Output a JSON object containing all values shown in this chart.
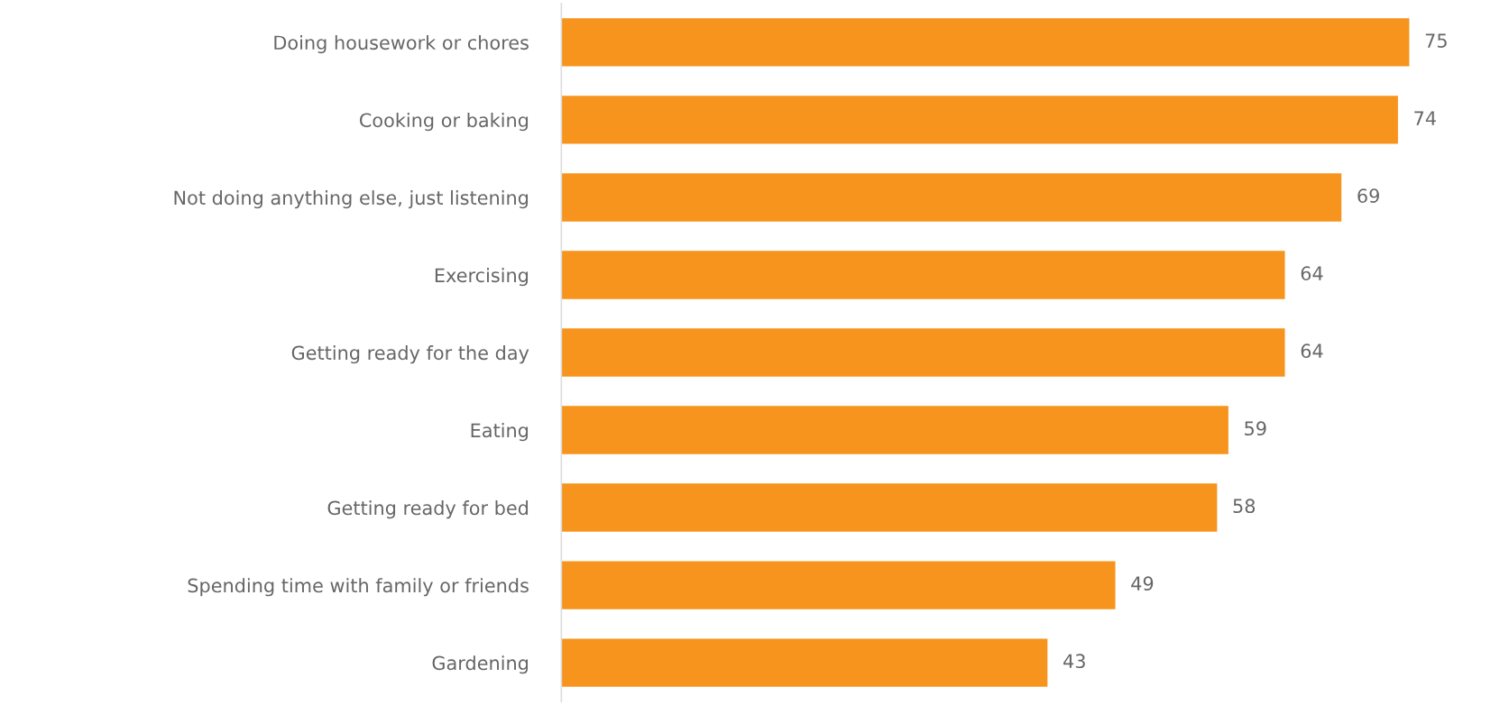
{
  "chart_data": {
    "type": "bar",
    "orientation": "horizontal",
    "categories": [
      "Doing housework or chores",
      "Cooking or baking",
      "Not doing anything else, just listening",
      "Exercising",
      "Getting ready for the day",
      "Eating",
      "Getting ready for bed",
      "Spending time with family or friends",
      "Gardening"
    ],
    "values": [
      75,
      74,
      69,
      64,
      64,
      59,
      58,
      49,
      43
    ],
    "color": "#f7941d",
    "tick_labels": "y",
    "data_labels": true,
    "grid": false,
    "legend": false
  }
}
